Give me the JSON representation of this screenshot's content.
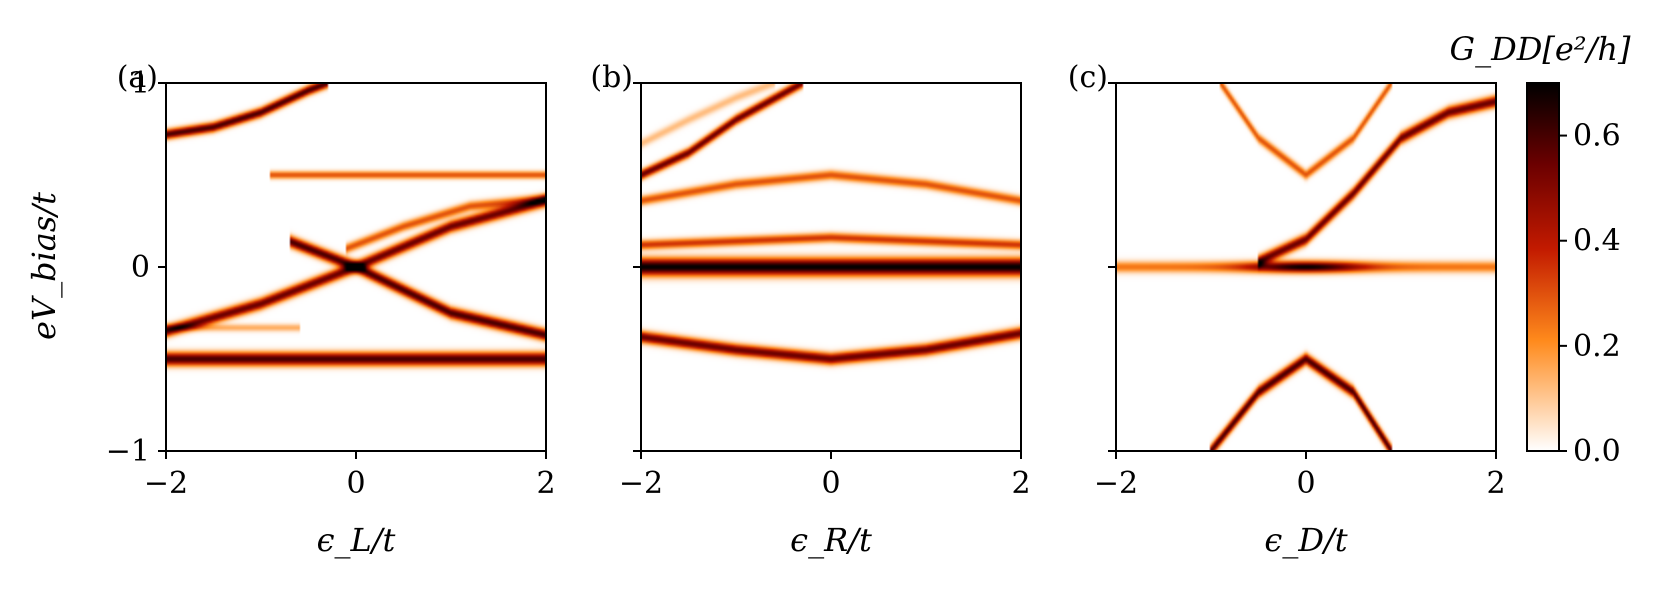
{
  "chart_data": {
    "type": "heatmap",
    "colormap": "gist_heat_r",
    "colorbar": {
      "title": "G_DD[e²/h]",
      "range": [
        0.0,
        0.7
      ],
      "ticks": [
        0.0,
        0.2,
        0.4,
        0.6
      ],
      "tick_labels": [
        "0.0",
        "0.2",
        "0.4",
        "0.6"
      ]
    },
    "ylabel": "eV_bias/t",
    "ylim": [
      -1,
      1
    ],
    "yticks": [
      -1,
      0,
      1
    ],
    "ytick_labels": [
      "−1",
      "0",
      "1"
    ],
    "panels": [
      {
        "label": "(a)",
        "xlabel": "ϵ_L/t",
        "xlim": [
          -2,
          2
        ],
        "xticks": [
          -2,
          0,
          2
        ],
        "xtick_labels": [
          "−2",
          "0",
          "2"
        ],
        "show_ytick_labels": true,
        "features": [
          {
            "name": "flat line",
            "points": [
              [
                -2.0,
                -0.5
              ],
              [
                0.0,
                -0.5
              ],
              [
                2.0,
                -0.5
              ]
            ],
            "intensity": 0.6,
            "width": 0.035
          },
          {
            "name": "rising arc",
            "points": [
              [
                -2.0,
                -0.35
              ],
              [
                -1.0,
                -0.2
              ],
              [
                0.0,
                0.0
              ],
              [
                1.0,
                0.22
              ],
              [
                2.0,
                0.36
              ]
            ],
            "intensity": 0.55,
            "width": 0.03
          },
          {
            "name": "falling arc",
            "points": [
              [
                -0.7,
                0.14
              ],
              [
                0.0,
                0.0
              ],
              [
                1.0,
                -0.25
              ],
              [
                2.0,
                -0.37
              ]
            ],
            "intensity": 0.6,
            "width": 0.03
          },
          {
            "name": "faint arc",
            "points": [
              [
                -0.1,
                0.1
              ],
              [
                0.5,
                0.22
              ],
              [
                1.2,
                0.33
              ],
              [
                2.0,
                0.37
              ]
            ],
            "intensity": 0.3,
            "width": 0.025
          },
          {
            "name": "upper flat",
            "points": [
              [
                -0.9,
                0.5
              ],
              [
                0.5,
                0.5
              ],
              [
                2.0,
                0.5
              ]
            ],
            "intensity": 0.3,
            "width": 0.02
          },
          {
            "name": "upper left branch",
            "points": [
              [
                -2.0,
                0.72
              ],
              [
                -1.5,
                0.76
              ],
              [
                -1.0,
                0.84
              ],
              [
                -0.5,
                0.96
              ],
              [
                -0.3,
                1.0
              ]
            ],
            "intensity": 0.6,
            "width": 0.025
          },
          {
            "name": "faint short line",
            "points": [
              [
                -2.0,
                -0.33
              ],
              [
                -1.2,
                -0.33
              ],
              [
                -0.6,
                -0.33
              ]
            ],
            "intensity": 0.15,
            "width": 0.02
          }
        ]
      },
      {
        "label": "(b)",
        "xlabel": "ϵ_R/t",
        "xlim": [
          -2,
          2
        ],
        "xticks": [
          -2,
          0,
          2
        ],
        "xtick_labels": [
          "−2",
          "0",
          "2"
        ],
        "show_ytick_labels": false,
        "features": [
          {
            "name": "zero bias line",
            "points": [
              [
                -2.0,
                0.0
              ],
              [
                0.0,
                0.0
              ],
              [
                2.0,
                0.0
              ]
            ],
            "intensity": 0.7,
            "width": 0.045
          },
          {
            "name": "lower arc",
            "points": [
              [
                -2.0,
                -0.38
              ],
              [
                -1.0,
                -0.45
              ],
              [
                0.0,
                -0.5
              ],
              [
                1.0,
                -0.45
              ],
              [
                2.0,
                -0.36
              ]
            ],
            "intensity": 0.55,
            "width": 0.03
          },
          {
            "name": "upper arc",
            "points": [
              [
                -2.0,
                0.36
              ],
              [
                -1.0,
                0.45
              ],
              [
                0.0,
                0.5
              ],
              [
                1.0,
                0.45
              ],
              [
                2.0,
                0.36
              ]
            ],
            "intensity": 0.3,
            "width": 0.025
          },
          {
            "name": "near-zero band",
            "points": [
              [
                -2.0,
                0.12
              ],
              [
                0.0,
                0.16
              ],
              [
                2.0,
                0.12
              ]
            ],
            "intensity": 0.35,
            "width": 0.025
          },
          {
            "name": "steep branch",
            "points": [
              [
                -2.0,
                0.5
              ],
              [
                -1.5,
                0.62
              ],
              [
                -1.0,
                0.8
              ],
              [
                -0.3,
                1.0
              ]
            ],
            "intensity": 0.55,
            "width": 0.025
          },
          {
            "name": "faint steep branch",
            "points": [
              [
                -2.0,
                0.67
              ],
              [
                -1.5,
                0.8
              ],
              [
                -1.0,
                0.92
              ],
              [
                -0.6,
                1.0
              ]
            ],
            "intensity": 0.12,
            "width": 0.025
          }
        ]
      },
      {
        "label": "(c)",
        "xlabel": "ϵ_D/t",
        "xlim": [
          -2,
          2
        ],
        "xticks": [
          -2,
          0,
          2
        ],
        "xtick_labels": [
          "−2",
          "0",
          "2"
        ],
        "show_ytick_labels": false,
        "features": [
          {
            "name": "zero bias line",
            "points": [
              [
                -2.0,
                0.0
              ],
              [
                0.0,
                0.0
              ],
              [
                2.0,
                0.0
              ]
            ],
            "intensity": 0.7,
            "width": 0.03,
            "peak_width": 0.6
          },
          {
            "name": "lower hyperbola",
            "points": [
              [
                -1.0,
                -1.0
              ],
              [
                -0.5,
                -0.68
              ],
              [
                0.0,
                -0.5
              ],
              [
                0.5,
                -0.68
              ],
              [
                0.9,
                -1.0
              ]
            ],
            "intensity": 0.6,
            "width": 0.03
          },
          {
            "name": "upper hyperbola",
            "points": [
              [
                -0.9,
                1.0
              ],
              [
                -0.5,
                0.7
              ],
              [
                0.0,
                0.5
              ],
              [
                0.5,
                0.7
              ],
              [
                0.9,
                1.0
              ]
            ],
            "intensity": 0.3,
            "width": 0.025
          },
          {
            "name": "rising sigmoid",
            "points": [
              [
                -0.5,
                0.03
              ],
              [
                0.0,
                0.15
              ],
              [
                0.5,
                0.4
              ],
              [
                1.0,
                0.7
              ],
              [
                1.5,
                0.84
              ],
              [
                2.0,
                0.9
              ]
            ],
            "intensity": 0.55,
            "width": 0.03
          }
        ]
      }
    ]
  }
}
